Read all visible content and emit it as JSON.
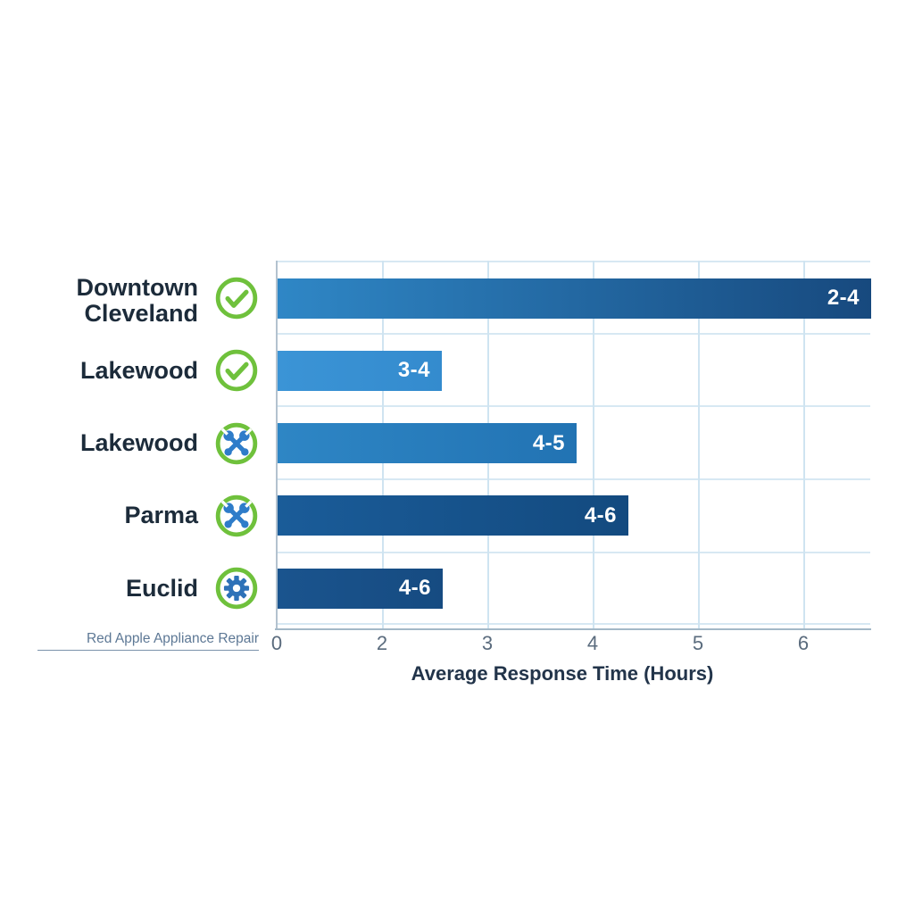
{
  "footer": {
    "brand": "Red Apple Appliance Repair"
  },
  "chart_data": {
    "type": "bar",
    "orientation": "horizontal",
    "title": "",
    "xlabel": "Average Response Time (Hours)",
    "ylabel": "",
    "x_tick_labels": [
      "0",
      "2",
      "3",
      "4",
      "5",
      "6"
    ],
    "grid": true,
    "legend": "none",
    "categories": [
      "Downtown Cleveland",
      "Lakewood",
      "Lakewood",
      "Parma",
      "Euclid"
    ],
    "series": [
      {
        "name": "Average Response Time (Hours)",
        "value_labels": [
          "2-4",
          "3-4",
          "4-5",
          "4-6",
          "4-6"
        ],
        "bar_end_axis_positions": [
          5.64,
          1.57,
          2.85,
          3.34,
          1.58
        ]
      }
    ],
    "rows": [
      {
        "label": "Downtown Cleveland",
        "icon": "check-circle-icon",
        "value_label": "2-4",
        "bar_end_ticks": 5.64,
        "color_start": "#2f87c6",
        "color_end": "#17497e"
      },
      {
        "label": "Lakewood",
        "icon": "check-circle-icon",
        "value_label": "3-4",
        "bar_end_ticks": 1.57,
        "color_start": "#3b94d6",
        "color_end": "#348bce"
      },
      {
        "label": "Lakewood",
        "icon": "tools-icon",
        "value_label": "4-5",
        "bar_end_ticks": 2.85,
        "color_start": "#2e86c5",
        "color_end": "#2273b3"
      },
      {
        "label": "Parma",
        "icon": "tools-icon",
        "value_label": "4-6",
        "bar_end_ticks": 3.34,
        "color_start": "#1a5c99",
        "color_end": "#134a7f"
      },
      {
        "label": "Euclid",
        "icon": "gear-icon",
        "value_label": "4-6",
        "bar_end_ticks": 1.58,
        "color_start": "#1a548e",
        "color_end": "#164b81"
      }
    ],
    "colors": {
      "icon_ring_green": "#6fc13c",
      "icon_glyph_blue": "#2e7cc9",
      "row_label_text": "#1c2b3a",
      "tick_label_text": "#5a6b7d",
      "axis_title_text": "#22344a",
      "gridline": "#cfe4f1",
      "axis_line": "#a3b8c7",
      "bar_value_text": "#ffffff",
      "footer_text": "#5d7895"
    }
  }
}
